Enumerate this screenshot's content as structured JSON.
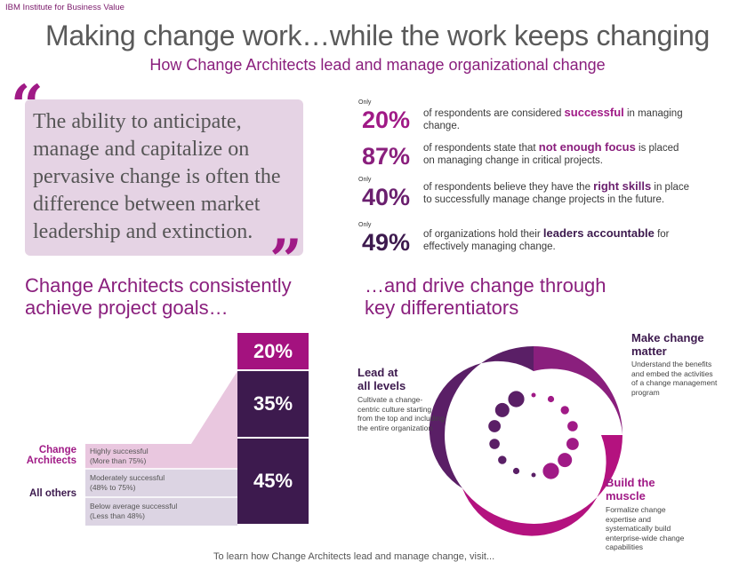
{
  "header": {
    "source": "IBM Institute for Business Value",
    "title": "Making change work…while the work keeps changing",
    "subtitle": "How Change Architects lead and manage organizational change"
  },
  "quote": {
    "open_mark": "“",
    "close_mark": "”",
    "text": "The ability to anticipate, manage and capitalize on pervasive change is often the difference between market leadership and extinction."
  },
  "stats": [
    {
      "only": "Only",
      "pct": "20%",
      "pre": "of respondents are considered ",
      "hl": "successful",
      "post": " in managing change.",
      "color": "#a01a86"
    },
    {
      "only": "",
      "pct": "87%",
      "pre": "of respondents state that ",
      "hl": "not enough focus",
      "post": " is placed on managing change in critical projects.",
      "color": "#8a1f7d"
    },
    {
      "only": "Only",
      "pct": "40%",
      "pre": "of respondents believe they have the ",
      "hl": "right skills",
      "post": " in place to successfully manage change projects in the future.",
      "color": "#6a1f6e"
    },
    {
      "only": "Only",
      "pct": "49%",
      "pre": "of organizations hold their ",
      "hl": "leaders accountable",
      "post": " for effectively managing change.",
      "color": "#3d1a4e"
    }
  ],
  "left_section": {
    "heading_line1": "Change Architects consistently",
    "heading_line2": "achieve project goals…"
  },
  "right_section": {
    "heading_line1": "…and drive change through",
    "heading_line2": "key differentiators"
  },
  "chart_data": {
    "type": "bar",
    "categories": [
      "Highly successful (More than 75%)",
      "Moderately successful (48% to 75%)",
      "Below average successful (Less than 48%)"
    ],
    "values": [
      20,
      35,
      45
    ],
    "value_labels": [
      "20%",
      "35%",
      "45%"
    ],
    "row_labels": [
      {
        "line1": "Highly successful",
        "line2": "(More than 75%)"
      },
      {
        "line1": "Moderately successful",
        "line2": "(48% to 75%)"
      },
      {
        "line1": "Below average successful",
        "line2": "(Less than 48%)"
      }
    ],
    "groups": [
      {
        "line1": "Change",
        "line2": "Architects",
        "color": "#a01a86"
      },
      {
        "line1": "All others",
        "line2": "",
        "color": "#3d1a4e"
      }
    ],
    "colors": [
      "#a4127f",
      "#3d1a4e",
      "#3d1a4e"
    ]
  },
  "differentiators": {
    "lead": {
      "title_line1": "Lead at",
      "title_line2": "all levels",
      "desc": [
        "Cultivate a change-",
        "centric culture starting",
        "from the top and including",
        "the entire organization"
      ]
    },
    "matter": {
      "title_line1": "Make change",
      "title_line2": "matter",
      "desc": [
        "Understand the benefits",
        "and embed the activities",
        "of a change management",
        "program"
      ]
    },
    "muscle": {
      "title_line1": "Build the",
      "title_line2": "muscle",
      "desc": [
        "Formalize change",
        "expertise and",
        "systematically build",
        "enterprise-wide change",
        "capabilities"
      ]
    }
  },
  "footer": {
    "text": "To learn how Change Architects lead and manage change, visit..."
  }
}
